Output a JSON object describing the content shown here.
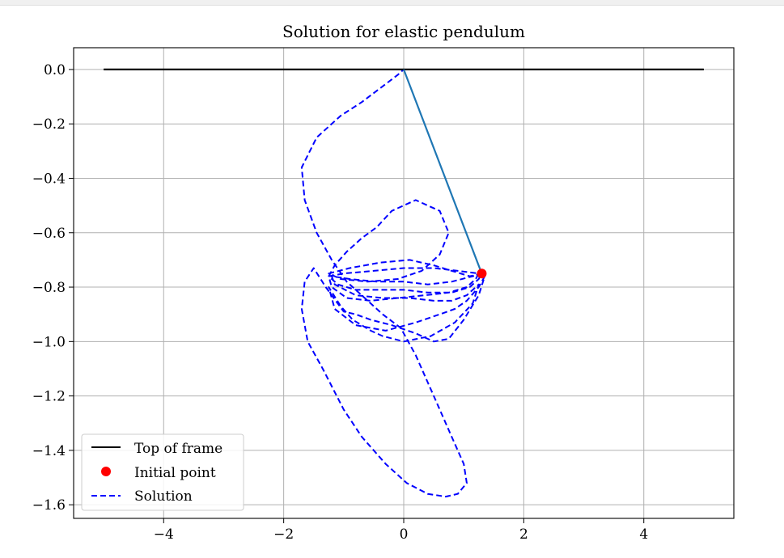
{
  "chart_data": {
    "type": "line",
    "title": "Solution for elastic pendulum",
    "xlabel": "",
    "ylabel": "",
    "xlim": [
      -5.5,
      5.5
    ],
    "ylim": [
      -1.65,
      0.08
    ],
    "xticks": [
      -4,
      -2,
      0,
      2,
      4
    ],
    "xtick_labels": [
      "−4",
      "−2",
      "0",
      "2",
      "4"
    ],
    "yticks": [
      0.0,
      -0.2,
      -0.4,
      -0.6,
      -0.8,
      -1.0,
      -1.2,
      -1.4,
      -1.6
    ],
    "ytick_labels": [
      "0.0",
      "−0.2",
      "−0.4",
      "−0.6",
      "−0.8",
      "−1.0",
      "−1.2",
      "−1.4",
      "−1.6"
    ],
    "grid": true,
    "legend_placement": "lower-left",
    "colors": {
      "frame": "#000000",
      "rod": "#1f77b4",
      "point": "#ff0000",
      "solution": "#0000ff"
    },
    "series": [
      {
        "name": "Top of frame",
        "style": "solid",
        "x": [
          -5,
          5
        ],
        "y": [
          0,
          0
        ]
      },
      {
        "name": "",
        "style": "solid",
        "x": [
          0,
          1.3
        ],
        "y": [
          0,
          -0.75
        ]
      },
      {
        "name": "Initial point",
        "style": "marker",
        "x": [
          1.3
        ],
        "y": [
          -0.75
        ]
      },
      {
        "name": "Solution",
        "style": "dashed",
        "x": [
          1.3,
          1.1,
          0.8,
          0.5,
          0.1,
          -0.4,
          -0.9,
          -1.25,
          -1.05,
          -0.6,
          -0.1,
          0.3,
          0.6,
          0.75,
          0.6,
          0.2,
          -0.2,
          -0.45,
          -0.7,
          -0.95,
          -1.15,
          -1.25,
          -1.2,
          -0.95,
          -0.55,
          -0.1,
          0.35,
          0.75,
          1.05,
          1.2,
          1.25,
          0.9,
          0.5,
          0.0,
          -0.5,
          -1.0,
          -1.25,
          -1.1,
          -0.8,
          -0.4,
          0.0,
          0.4,
          0.8,
          1.1,
          1.25,
          1.3,
          1.15,
          0.8,
          0.4,
          0.0,
          -0.45,
          -0.9,
          -1.2,
          -1.15,
          -0.8,
          -0.35,
          0.1,
          0.5,
          0.8,
          1.05,
          1.25,
          1.15,
          0.85,
          0.45,
          0.0,
          -0.35,
          -0.55,
          -0.7,
          -0.85,
          -1.05,
          -1.25,
          -1.15,
          -0.8,
          -0.3,
          0.2,
          0.6,
          0.85,
          1.05,
          1.25,
          1.35,
          1.25,
          1.0,
          0.75,
          0.5,
          0.2,
          -0.2,
          -0.55,
          -0.8,
          -1.0,
          -1.3,
          -1.5,
          -1.65,
          -1.7,
          -1.6,
          -1.35,
          -1.0,
          -0.7,
          -0.3,
          0.05,
          0.4,
          0.7,
          0.9,
          1.05,
          1.0,
          0.8,
          0.5,
          0.2,
          -0.05,
          -0.35,
          -0.65,
          -0.95,
          -1.2,
          -1.45,
          -1.65,
          -1.7,
          -1.45,
          -1.05,
          -0.7,
          -0.4,
          -0.1,
          0.0
        ],
        "y": [
          -0.75,
          -0.76,
          -0.74,
          -0.72,
          -0.7,
          -0.71,
          -0.73,
          -0.75,
          -0.77,
          -0.78,
          -0.77,
          -0.74,
          -0.68,
          -0.6,
          -0.52,
          -0.48,
          -0.52,
          -0.58,
          -0.62,
          -0.67,
          -0.72,
          -0.76,
          -0.8,
          -0.84,
          -0.85,
          -0.84,
          -0.83,
          -0.82,
          -0.8,
          -0.77,
          -0.75,
          -0.74,
          -0.73,
          -0.73,
          -0.74,
          -0.75,
          -0.76,
          -0.79,
          -0.81,
          -0.81,
          -0.81,
          -0.82,
          -0.82,
          -0.8,
          -0.77,
          -0.75,
          -0.76,
          -0.78,
          -0.79,
          -0.78,
          -0.78,
          -0.77,
          -0.76,
          -0.79,
          -0.83,
          -0.84,
          -0.84,
          -0.85,
          -0.85,
          -0.83,
          -0.79,
          -0.86,
          -0.93,
          -0.98,
          -1.0,
          -0.98,
          -0.96,
          -0.94,
          -0.92,
          -0.87,
          -0.8,
          -0.88,
          -0.94,
          -0.96,
          -0.93,
          -0.9,
          -0.88,
          -0.85,
          -0.8,
          -0.76,
          -0.83,
          -0.92,
          -0.99,
          -1.0,
          -0.97,
          -0.94,
          -0.92,
          -0.9,
          -0.89,
          -0.8,
          -0.73,
          -0.78,
          -0.88,
          -1.0,
          -1.1,
          -1.25,
          -1.35,
          -1.45,
          -1.52,
          -1.56,
          -1.57,
          -1.56,
          -1.52,
          -1.45,
          -1.35,
          -1.2,
          -1.05,
          -0.95,
          -0.9,
          -0.84,
          -0.78,
          -0.7,
          -0.6,
          -0.48,
          -0.36,
          -0.25,
          -0.17,
          -0.12,
          -0.07,
          -0.02,
          0.0
        ]
      }
    ]
  }
}
